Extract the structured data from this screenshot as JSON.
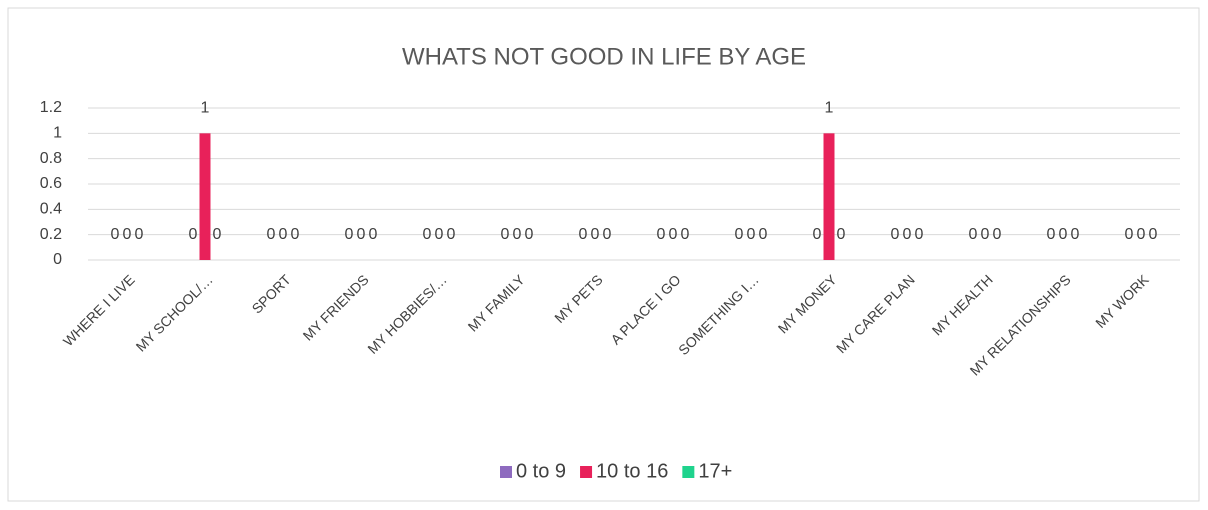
{
  "chart_data": {
    "type": "bar",
    "title": "WHATS NOT GOOD IN LIFE BY AGE",
    "categories": [
      "WHERE I LIVE",
      "MY SCHOOL/…",
      "SPORT",
      "MY FRIENDS",
      "MY HOBBIES/…",
      "MY FAMILY",
      "MY PETS",
      "A PLACE I GO",
      "SOMETHING I…",
      "MY MONEY",
      "MY CARE PLAN",
      "MY HEALTH",
      "MY RELATIONSHIPS",
      "MY WORK"
    ],
    "series": [
      {
        "name": "0 to 9",
        "color": "#8e6bbf",
        "values": [
          0,
          0,
          0,
          0,
          0,
          0,
          0,
          0,
          0,
          0,
          0,
          0,
          0,
          0
        ]
      },
      {
        "name": "10 to 16",
        "color": "#e8215a",
        "values": [
          0,
          1,
          0,
          0,
          0,
          0,
          0,
          0,
          0,
          1,
          0,
          0,
          0,
          0
        ]
      },
      {
        "name": "17+",
        "color": "#1fd38d",
        "values": [
          0,
          0,
          0,
          0,
          0,
          0,
          0,
          0,
          0,
          0,
          0,
          0,
          0,
          0
        ]
      }
    ],
    "ylim": [
      0,
      1.2
    ],
    "yticks": [
      0,
      0.2,
      0.4,
      0.6,
      0.8,
      1,
      1.2
    ],
    "grid": true,
    "legend": "bottom"
  }
}
